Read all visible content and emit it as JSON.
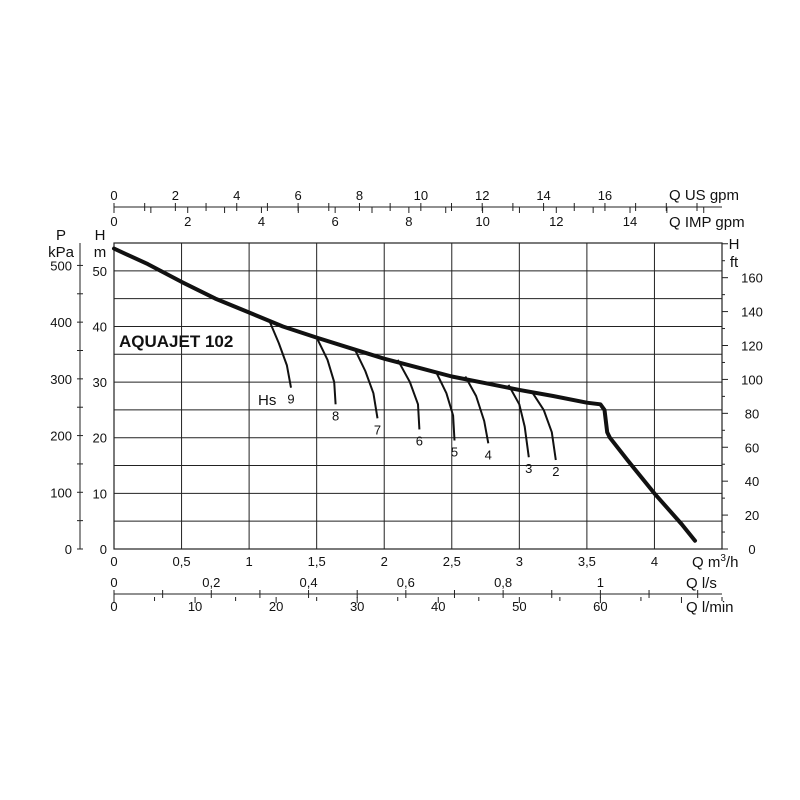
{
  "chart_data": {
    "type": "line",
    "title": "AQUAJET 102",
    "xlabel_m3h": "Q m³/h",
    "xlabel_ls": "Q l/s",
    "xlabel_lmin": "Q l/min",
    "xlabel_usgpm": "Q US gpm",
    "xlabel_impgpm": "Q IMP gpm",
    "ylabel_kpa_top": "P",
    "ylabel_kpa_unit": "kPa",
    "ylabel_m_top": "H",
    "ylabel_m_unit": "m",
    "ylabel_ft_top": "H",
    "ylabel_ft_unit": "ft",
    "hs_label": "Hs",
    "xlim_m3h": [
      0,
      4.5
    ],
    "ylim_m": [
      0,
      55
    ],
    "grid": true,
    "ticks_m3h": [
      "0",
      "0,5",
      "1",
      "1,5",
      "2",
      "2,5",
      "3",
      "3,5",
      "4"
    ],
    "ticks_ls": [
      "0",
      "0,2",
      "0,4",
      "0,6",
      "0,8",
      "1"
    ],
    "ticks_lmin": [
      "0",
      "10",
      "20",
      "30",
      "40",
      "50",
      "60"
    ],
    "ticks_usgpm": [
      "0",
      "2",
      "4",
      "6",
      "8",
      "10",
      "12",
      "14",
      "16"
    ],
    "ticks_impgpm": [
      "0",
      "2",
      "4",
      "6",
      "8",
      "10",
      "12",
      "14"
    ],
    "ticks_m": [
      "0",
      "10",
      "20",
      "30",
      "40",
      "50"
    ],
    "ticks_kpa": [
      "0",
      "100",
      "200",
      "300",
      "400",
      "500"
    ],
    "ticks_ft": [
      "0",
      "20",
      "40",
      "60",
      "80",
      "100",
      "120",
      "140",
      "160"
    ],
    "series": [
      {
        "x": [
          0,
          0.25,
          0.5,
          0.75,
          1.0,
          1.25,
          1.5,
          1.75,
          2.0,
          2.25,
          2.5,
          2.75,
          3.0,
          3.25,
          3.5,
          3.6,
          3.63,
          3.65,
          3.67,
          3.8,
          4.0,
          4.2,
          4.3
        ],
        "y": [
          54,
          51.2,
          48,
          45,
          42.5,
          40,
          38,
          36.1,
          34.2,
          32.6,
          31,
          29.8,
          28.6,
          27.5,
          26.3,
          26,
          25,
          21,
          20,
          16,
          10,
          4.5,
          1.5
        ]
      }
    ],
    "suction_curves": [
      {
        "label": "9",
        "x": [
          1.15,
          1.22,
          1.28,
          1.31
        ],
        "y": [
          41,
          37,
          33,
          29
        ]
      },
      {
        "label": "8",
        "x": [
          1.5,
          1.58,
          1.63,
          1.64
        ],
        "y": [
          38,
          34,
          30,
          26
        ]
      },
      {
        "label": "7",
        "x": [
          1.78,
          1.86,
          1.92,
          1.95
        ],
        "y": [
          36,
          32,
          28,
          23.5
        ]
      },
      {
        "label": "6",
        "x": [
          2.1,
          2.19,
          2.25,
          2.26
        ],
        "y": [
          34,
          30,
          26,
          21.5
        ]
      },
      {
        "label": "5",
        "x": [
          2.38,
          2.46,
          2.51,
          2.52
        ],
        "y": [
          32,
          28,
          24,
          19.5
        ]
      },
      {
        "label": "4",
        "x": [
          2.6,
          2.68,
          2.74,
          2.77
        ],
        "y": [
          31,
          27.5,
          23,
          19
        ]
      },
      {
        "label": "3",
        "x": [
          2.92,
          3.0,
          3.04,
          3.07
        ],
        "y": [
          29.5,
          26,
          22,
          16.5
        ]
      },
      {
        "label": "2",
        "x": [
          3.1,
          3.18,
          3.24,
          3.27
        ],
        "y": [
          28,
          25,
          21,
          16
        ]
      }
    ]
  }
}
